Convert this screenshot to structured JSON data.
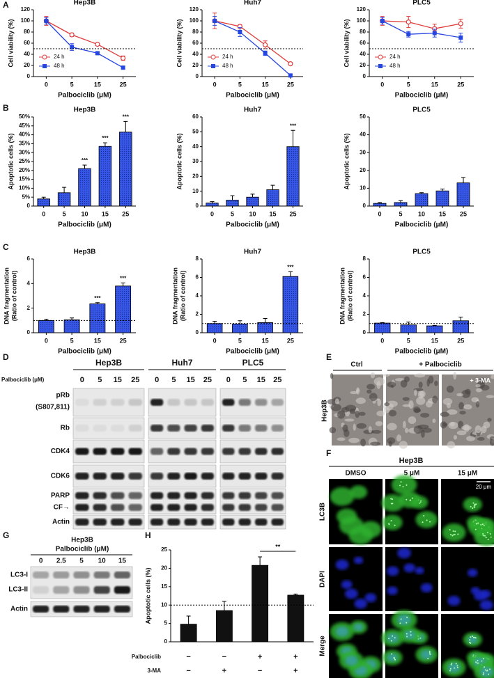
{
  "panel_labels": [
    "A",
    "B",
    "C",
    "D",
    "E",
    "F",
    "G",
    "H"
  ],
  "chart_data": [
    {
      "type": "line",
      "title": "Hep3B",
      "xlabel": "Palbociclib (μM)",
      "ylabel": "Cell viability (%)",
      "categories": [
        "0",
        "5",
        "15",
        "25"
      ],
      "ylim": [
        0,
        120
      ],
      "yticks": [
        0,
        20,
        40,
        60,
        80,
        100,
        120
      ],
      "ref_line": 50,
      "legend": "lower left",
      "series": [
        {
          "name": "24 h",
          "color": "#e03a3a",
          "marker": "open-circle",
          "values": [
            100,
            75,
            58,
            33
          ],
          "errors": [
            8,
            3,
            2,
            4
          ]
        },
        {
          "name": "48 h",
          "color": "#2646e0",
          "marker": "square",
          "values": [
            100,
            53,
            42,
            16
          ],
          "errors": [
            6,
            6,
            2,
            2
          ]
        }
      ]
    },
    {
      "type": "line",
      "title": "Huh7",
      "xlabel": "Palbociclib (μM)",
      "ylabel": "Cell viability (%)",
      "categories": [
        "0",
        "5",
        "15",
        "25"
      ],
      "ylim": [
        0,
        120
      ],
      "yticks": [
        0,
        20,
        40,
        60,
        80,
        100,
        120
      ],
      "ref_line": 50,
      "legend": "lower left",
      "series": [
        {
          "name": "24 h",
          "color": "#e03a3a",
          "marker": "open-circle",
          "values": [
            100,
            90,
            57,
            23
          ],
          "errors": [
            14,
            3,
            7,
            2
          ]
        },
        {
          "name": "48 h",
          "color": "#2646e0",
          "marker": "square",
          "values": [
            100,
            80,
            42,
            2
          ],
          "errors": [
            8,
            8,
            4,
            2
          ]
        }
      ]
    },
    {
      "type": "line",
      "title": "PLC5",
      "xlabel": "Palbociclib (μM)",
      "ylabel": "Cell viability (%)",
      "categories": [
        "0",
        "5",
        "15",
        "25"
      ],
      "ylim": [
        0,
        120
      ],
      "yticks": [
        0,
        20,
        40,
        60,
        80,
        100,
        120
      ],
      "ref_line": 50,
      "legend": "lower left",
      "series": [
        {
          "name": "24 h",
          "color": "#e03a3a",
          "marker": "open-circle",
          "values": [
            100,
            98,
            86,
            95
          ],
          "errors": [
            8,
            10,
            8,
            8
          ]
        },
        {
          "name": "48 h",
          "color": "#2646e0",
          "marker": "square",
          "values": [
            100,
            76,
            78,
            70
          ],
          "errors": [
            6,
            5,
            7,
            8
          ]
        }
      ]
    },
    {
      "type": "bar",
      "title": "Hep3B",
      "xlabel": "Palbociclib (μM)",
      "ylabel": "Apoptotic cells (%)",
      "categories": [
        "0",
        "5",
        "10",
        "15",
        "25"
      ],
      "color": "#3656e6",
      "ylim": [
        0,
        50
      ],
      "yticks": [
        0,
        {
          "value": 5,
          "label": "5%"
        },
        {
          "value": 10,
          "label": "10%"
        },
        {
          "value": 15,
          "label": "15%"
        },
        {
          "value": 20,
          "label": "20%"
        },
        {
          "value": 25,
          "label": "25%"
        },
        {
          "value": 30,
          "label": "30%"
        },
        {
          "value": 35,
          "label": "35%"
        },
        {
          "value": 40,
          "label": "40%"
        },
        {
          "value": 45,
          "label": "45%"
        },
        {
          "value": 50,
          "label": "50%"
        }
      ],
      "values": [
        4,
        7.5,
        21,
        33.5,
        41.5
      ],
      "errors": [
        1,
        3,
        2,
        2,
        6
      ],
      "significance": [
        null,
        null,
        "***",
        "***",
        "***"
      ]
    },
    {
      "type": "bar",
      "title": "Huh7",
      "xlabel": "Palbociclib (μM)",
      "ylabel": "Apoptotic cells (%)",
      "categories": [
        "0",
        "5",
        "10",
        "15",
        "25"
      ],
      "color": "#3656e6",
      "ylim": [
        0,
        60
      ],
      "yticks": [
        0,
        10,
        20,
        30,
        40,
        50,
        60
      ],
      "values": [
        2,
        4,
        6,
        11,
        40
      ],
      "errors": [
        1,
        3,
        2,
        3,
        11
      ],
      "significance": [
        null,
        null,
        null,
        null,
        "***"
      ]
    },
    {
      "type": "bar",
      "title": "PLC5",
      "xlabel": "Palbociclib (μM)",
      "ylabel": "Apoptotic cells (%)",
      "categories": [
        "0",
        "5",
        "10",
        "15",
        "25"
      ],
      "color": "#3656e6",
      "ylim": [
        0,
        50
      ],
      "yticks": [
        0,
        10,
        20,
        30,
        40,
        50
      ],
      "values": [
        1.5,
        2,
        7,
        8.5,
        13
      ],
      "errors": [
        0.5,
        1,
        0.5,
        1,
        3
      ]
    },
    {
      "type": "bar",
      "title": "Hep3B",
      "xlabel": "Palbociclib (μM)",
      "ylabel": [
        "DNA fragmentation",
        "(Ratio of control)"
      ],
      "categories": [
        "0",
        "5",
        "15",
        "25"
      ],
      "color": "#3656e6",
      "ylim": [
        0,
        6
      ],
      "yticks": [
        0,
        2,
        4,
        6
      ],
      "ref_line": 1,
      "values": [
        1,
        1.05,
        2.35,
        3.8
      ],
      "errors": [
        0.1,
        0.15,
        0.1,
        0.25
      ],
      "significance": [
        null,
        null,
        "***",
        "***"
      ]
    },
    {
      "type": "bar",
      "title": "Huh7",
      "xlabel": "Palbociclib (μM)",
      "ylabel": [
        "DNA fragmentation",
        "(Ratio of control)"
      ],
      "categories": [
        "0",
        "5",
        "15",
        "25"
      ],
      "color": "#3656e6",
      "ylim": [
        0,
        8
      ],
      "yticks": [
        0,
        2,
        4,
        6,
        8
      ],
      "ref_line": 1,
      "values": [
        1,
        0.95,
        1.1,
        6.1
      ],
      "errors": [
        0.25,
        0.35,
        0.45,
        0.5
      ],
      "significance": [
        null,
        null,
        null,
        "***"
      ]
    },
    {
      "type": "bar",
      "title": "PLC5",
      "xlabel": "Palbociclib (μM)",
      "ylabel": [
        "DNA fragmentation",
        "(Ratio of control)"
      ],
      "categories": [
        "0",
        "5",
        "15",
        "25"
      ],
      "color": "#3656e6",
      "ylim": [
        0,
        8
      ],
      "yticks": [
        0,
        2,
        4,
        6,
        8
      ],
      "ref_line": 1,
      "values": [
        1.05,
        0.85,
        0.75,
        1.3
      ],
      "errors": [
        0.05,
        0.3,
        0.05,
        0.4
      ]
    },
    {
      "type": "bar",
      "ylabel": "Apoptotic cells (%)",
      "color": "#111111",
      "ylim": [
        0,
        25
      ],
      "yticks": [
        0,
        5,
        10,
        15,
        20,
        25
      ],
      "ref_line": 10,
      "values": [
        4.8,
        8.5,
        20.8,
        12.7
      ],
      "errors": [
        2.2,
        2.5,
        2.3,
        0.3
      ],
      "comparison_label": "**",
      "conditions": [
        {
          "name": "Palbociclib",
          "values": [
            "−",
            "−",
            "+",
            "+"
          ]
        },
        {
          "name": "3-MA",
          "values": [
            "−",
            "+",
            "−",
            "+"
          ]
        }
      ]
    }
  ],
  "blot_d": {
    "treatment": "Palbociclib (μM)",
    "groups": [
      {
        "name": "Hep3B",
        "doses": [
          "0",
          "5",
          "15",
          "25"
        ]
      },
      {
        "name": "Huh7",
        "doses": [
          "0",
          "5",
          "15",
          "25"
        ]
      },
      {
        "name": "PLC5",
        "doses": [
          "0",
          "5",
          "15",
          "25"
        ]
      }
    ],
    "rows": [
      [
        "pRb",
        "(S807,811)"
      ],
      [
        "Rb"
      ],
      [
        "CDK4"
      ],
      [
        "CDK6"
      ],
      [
        "PARP",
        "CF→"
      ],
      [
        "Actin"
      ]
    ]
  },
  "images_e": {
    "cell_line": "Hep3B",
    "columns": [
      "Ctrl",
      "+ Palbociclib"
    ],
    "inset": "+ 3-MA"
  },
  "images_f": {
    "cell_line": "Hep3B",
    "columns": [
      "DMSO",
      "5 μM",
      "15 μM"
    ],
    "rows": [
      "LC3B",
      "DAPI",
      "Merge"
    ],
    "scale": "20 μm"
  },
  "blot_g": {
    "cell_line": "Hep3B",
    "treatment": "Palbociclib (μM)",
    "doses": [
      "0",
      "2.5",
      "5",
      "10",
      "15"
    ],
    "rows": [
      "LC3-I",
      "LC3-II",
      "Actin"
    ]
  }
}
